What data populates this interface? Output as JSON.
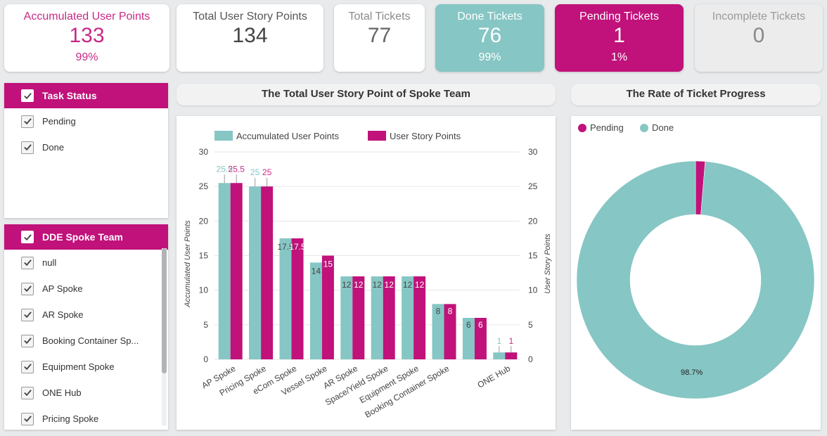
{
  "kpis": [
    {
      "label": "Accumulated User Points",
      "value": "133",
      "pct": "99%"
    },
    {
      "label": "Total User Story Points",
      "value": "134"
    },
    {
      "label": "Total Tickets",
      "value": "77"
    },
    {
      "label": "Done Tickets",
      "value": "76",
      "pct": "99%"
    },
    {
      "label": "Pending Tickets",
      "value": "1",
      "pct": "1%"
    },
    {
      "label": "Incomplete Tickets",
      "value": "0"
    }
  ],
  "filters": {
    "task_status": {
      "title": "Task Status",
      "items": [
        "Pending",
        "Done"
      ]
    },
    "team": {
      "title": "DDE Spoke Team",
      "items": [
        "null",
        "AP Spoke",
        "AR Spoke",
        "Booking Container Sp...",
        "Equipment Spoke",
        "ONE Hub",
        "Pricing Spoke"
      ]
    }
  },
  "charts": {
    "bar_title": "The Total User Story Point of Spoke Team",
    "donut_title": "The Rate of Ticket Progress"
  },
  "colors": {
    "teal": "#86c6c4",
    "magenta": "#c0127a",
    "magenta_text": "#c72a86"
  },
  "chart_data": [
    {
      "type": "bar",
      "categories": [
        "AP Spoke",
        "Pricing Spoke",
        "eCom Spoke",
        "Vessel Spoke",
        "AR Spoke",
        "Space/Yield Spoke",
        "Equipment Spoke",
        "Booking Container Spoke",
        "",
        "ONE Hub"
      ],
      "series": [
        {
          "name": "Accumulated User Points",
          "values": [
            25.5,
            25,
            17.5,
            14,
            12,
            12,
            12,
            8,
            6,
            1
          ]
        },
        {
          "name": "User Story Points",
          "values": [
            25.5,
            25,
            17.5,
            15,
            12,
            12,
            12,
            8,
            6,
            1
          ]
        }
      ],
      "data_labels": [
        [
          "25.5",
          "25",
          "17.5",
          "14",
          "12",
          "12",
          "12",
          "8",
          "6",
          "1"
        ],
        [
          "25.5",
          "25",
          "17.5",
          "15",
          "12",
          "12",
          "12",
          "8",
          "6",
          "1"
        ]
      ],
      "ylabel": "Accumulated User Points",
      "y2label": "User Story Points",
      "ylim": [
        0,
        30
      ],
      "yticks": [
        "0",
        "5",
        "10",
        "15",
        "20",
        "25",
        "30"
      ],
      "legend": "top",
      "grid": true
    },
    {
      "type": "pie",
      "categories": [
        "Pending",
        "Done"
      ],
      "values": [
        1.3,
        98.7
      ],
      "labels": [
        "",
        "98.7%"
      ],
      "legend": "top-left"
    }
  ]
}
